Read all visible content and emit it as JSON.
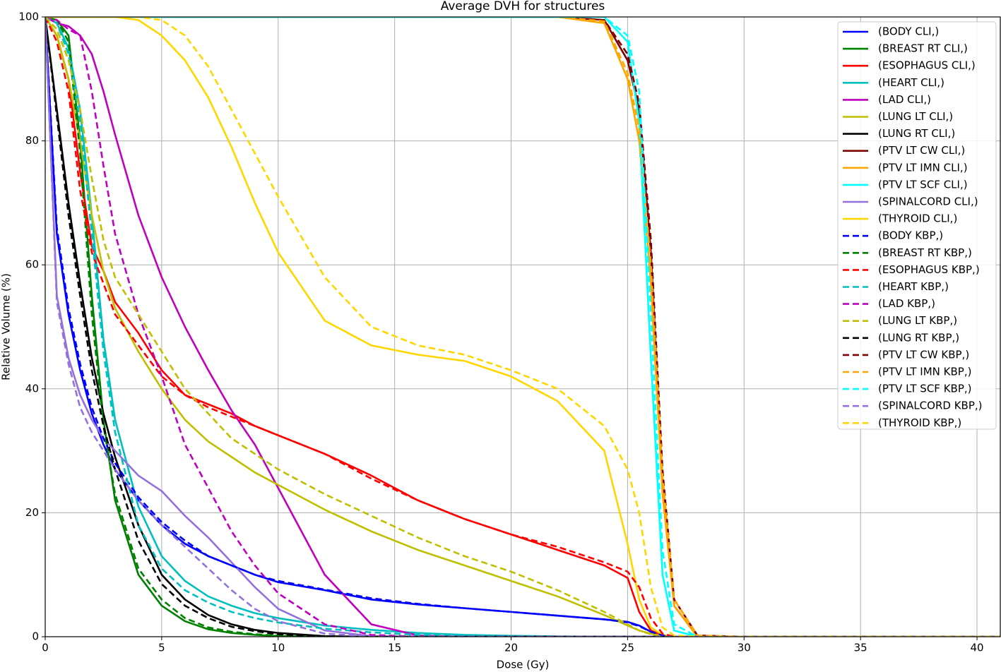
{
  "chart_data": {
    "type": "line",
    "title": "Average DVH for structures",
    "xlabel": "Dose (Gy)",
    "ylabel": "Relative Volume (%)",
    "xlim": [
      0,
      41
    ],
    "xticks": [
      0,
      5,
      10,
      15,
      20,
      25,
      30,
      35,
      40
    ],
    "ylim": [
      0,
      100
    ],
    "yticks": [
      0,
      20,
      40,
      60,
      80,
      100
    ],
    "grid": true,
    "legend": "upper right",
    "x": [
      0,
      0.5,
      1,
      1.5,
      2,
      2.5,
      3,
      4,
      5,
      6,
      7,
      8,
      9,
      10,
      12,
      14,
      16,
      18,
      20,
      22,
      24,
      25,
      25.5,
      26,
      26.5,
      27,
      28,
      30,
      41
    ],
    "series": [
      {
        "name": "(BODY CLI,)",
        "color": "#0000ff",
        "linestyle": "solid",
        "values": [
          100,
          65,
          52,
          43,
          36,
          31,
          27,
          22,
          18,
          15,
          13,
          11.5,
          10,
          8.8,
          7.5,
          6,
          5.2,
          4.6,
          4,
          3.4,
          2.8,
          2.4,
          1.8,
          0.8,
          0.2,
          0,
          0,
          0,
          0
        ]
      },
      {
        "name": "(BREAST RT CLI,)",
        "color": "#008000",
        "linestyle": "solid",
        "values": [
          100,
          99.5,
          97,
          80,
          55,
          35,
          22,
          10,
          5,
          2.5,
          1.2,
          0.6,
          0.3,
          0.1,
          0,
          0,
          0,
          0,
          0,
          0,
          0,
          0,
          0,
          0,
          0,
          0,
          0,
          0,
          0
        ]
      },
      {
        "name": "(ESOPHAGUS CLI,)",
        "color": "#ff0000",
        "linestyle": "solid",
        "values": [
          100,
          97,
          90,
          75,
          63,
          59,
          54,
          49,
          43,
          39,
          37.5,
          36,
          34,
          32.5,
          29.5,
          26,
          22,
          19,
          16.5,
          14,
          11.5,
          9.5,
          4,
          1,
          0.2,
          0,
          0,
          0,
          0
        ]
      },
      {
        "name": "(HEART CLI,)",
        "color": "#00bfbf",
        "linestyle": "solid",
        "values": [
          100,
          99,
          95,
          85,
          68,
          48,
          35,
          21,
          13,
          9,
          6.5,
          5,
          3.8,
          3,
          1.8,
          1.1,
          0.6,
          0.3,
          0.15,
          0.05,
          0,
          0,
          0,
          0,
          0,
          0,
          0,
          0,
          0
        ]
      },
      {
        "name": "(LAD CLI,)",
        "color": "#bf00bf",
        "linestyle": "solid",
        "values": [
          100,
          99,
          98.5,
          97,
          94,
          88,
          81,
          68,
          58,
          50,
          43,
          36.5,
          31,
          24,
          10,
          2,
          0.2,
          0,
          0,
          0,
          0,
          0,
          0,
          0,
          0,
          0,
          0,
          0,
          0
        ]
      },
      {
        "name": "(LUNG LT CLI,)",
        "color": "#bfbf00",
        "linestyle": "solid",
        "values": [
          100,
          97,
          90,
          80,
          68,
          59,
          53,
          46,
          40,
          35,
          31.5,
          29,
          26.5,
          24.5,
          20.5,
          17,
          14,
          11.5,
          9,
          6.5,
          3.5,
          1.8,
          1,
          0.5,
          0.1,
          0,
          0,
          0,
          0
        ]
      },
      {
        "name": "(LUNG RT CLI,)",
        "color": "#000000",
        "linestyle": "solid",
        "values": [
          100,
          85,
          70,
          57,
          45,
          36,
          29,
          18,
          10,
          6,
          3.5,
          2,
          1.1,
          0.6,
          0.1,
          0,
          0,
          0,
          0,
          0,
          0,
          0,
          0,
          0,
          0,
          0,
          0,
          0,
          0
        ]
      },
      {
        "name": "(PTV LT CW CLI,)",
        "color": "#800000",
        "linestyle": "solid",
        "values": [
          100,
          100,
          100,
          100,
          100,
          100,
          100,
          100,
          100,
          100,
          100,
          100,
          100,
          100,
          100,
          100,
          100,
          100,
          100,
          100,
          99.5,
          93,
          85,
          62,
          25,
          5,
          0,
          0,
          0
        ]
      },
      {
        "name": "(PTV LT IMN CLI,)",
        "color": "#ffa500",
        "linestyle": "solid",
        "values": [
          100,
          100,
          100,
          100,
          100,
          100,
          100,
          100,
          100,
          100,
          100,
          100,
          100,
          100,
          100,
          100,
          100,
          100,
          100,
          100,
          99,
          90,
          80,
          57,
          23,
          5,
          0,
          0,
          0
        ]
      },
      {
        "name": "(PTV LT SCF CLI,)",
        "color": "#00ffff",
        "linestyle": "solid",
        "values": [
          100,
          100,
          100,
          100,
          100,
          100,
          100,
          100,
          100,
          100,
          100,
          100,
          100,
          100,
          100,
          100,
          100,
          100,
          100,
          100,
          100,
          96,
          83,
          45,
          10,
          1,
          0,
          0,
          0
        ]
      },
      {
        "name": "(SPINALCORD CLI,)",
        "color": "#9370db",
        "linestyle": "solid",
        "values": [
          100,
          55,
          45,
          39,
          35,
          32,
          30,
          26,
          23.5,
          19.5,
          16,
          12,
          8,
          4.5,
          1,
          0.1,
          0,
          0,
          0,
          0,
          0,
          0,
          0,
          0,
          0,
          0,
          0,
          0,
          0
        ]
      },
      {
        "name": "(THYROID CLI,)",
        "color": "#ffd700",
        "linestyle": "solid",
        "values": [
          100,
          100,
          100,
          100,
          100,
          100,
          100,
          99.5,
          97,
          93,
          87,
          79,
          70,
          62,
          51,
          47,
          45.5,
          44.5,
          42,
          38,
          30,
          15,
          6,
          1.5,
          0.3,
          0,
          0,
          0,
          0
        ]
      },
      {
        "name": "(BODY KBP,)",
        "color": "#0000ff",
        "linestyle": "dashed",
        "values": [
          100,
          66,
          53,
          44,
          37,
          32,
          28,
          22.5,
          18.5,
          15.5,
          13,
          11.5,
          10,
          9,
          7.6,
          6.2,
          5.3,
          4.6,
          4,
          3.4,
          2.8,
          2.3,
          1.7,
          0.8,
          0.2,
          0,
          0,
          0,
          0
        ]
      },
      {
        "name": "(BREAST RT KBP,)",
        "color": "#008000",
        "linestyle": "dashed",
        "values": [
          100,
          99.5,
          96,
          78,
          52,
          34,
          23,
          11,
          6,
          3,
          1.5,
          0.8,
          0.4,
          0.2,
          0,
          0,
          0,
          0,
          0,
          0,
          0,
          0,
          0,
          0,
          0,
          0,
          0,
          0,
          0
        ]
      },
      {
        "name": "(ESOPHAGUS KBP,)",
        "color": "#ff0000",
        "linestyle": "dashed",
        "values": [
          100,
          96,
          88,
          72,
          62,
          57,
          52,
          47,
          42,
          39,
          37,
          35.5,
          34,
          32.5,
          29.5,
          25.5,
          22,
          19,
          16.5,
          14.5,
          12,
          10.5,
          8,
          3,
          0.5,
          0,
          0,
          0,
          0
        ]
      },
      {
        "name": "(HEART KBP,)",
        "color": "#00bfbf",
        "linestyle": "dashed",
        "values": [
          100,
          99,
          94,
          83,
          65,
          46,
          33,
          18,
          11,
          7.5,
          5.5,
          4,
          3,
          2.3,
          1.3,
          0.7,
          0.3,
          0.1,
          0,
          0,
          0,
          0,
          0,
          0,
          0,
          0,
          0,
          0,
          0
        ]
      },
      {
        "name": "(LAD KBP,)",
        "color": "#bf00bf",
        "linestyle": "dashed",
        "values": [
          100,
          99.5,
          98,
          97,
          88,
          76,
          65,
          52,
          42,
          31,
          24,
          17,
          11.5,
          7,
          2,
          0.3,
          0,
          0,
          0,
          0,
          0,
          0,
          0,
          0,
          0,
          0,
          0,
          0,
          0
        ]
      },
      {
        "name": "(LUNG LT KBP,)",
        "color": "#bfbf00",
        "linestyle": "dashed",
        "values": [
          100,
          98,
          93,
          85,
          74,
          64,
          58,
          52,
          46,
          40,
          36,
          32,
          29.5,
          27,
          23,
          19.5,
          16,
          13,
          10.5,
          7.5,
          4,
          2,
          1,
          0.4,
          0,
          0,
          0,
          0,
          0
        ]
      },
      {
        "name": "(LUNG RT KBP,)",
        "color": "#000000",
        "linestyle": "dashed",
        "values": [
          100,
          84,
          68,
          55,
          43,
          34,
          27,
          15.5,
          8.5,
          5,
          3,
          1.6,
          0.9,
          0.4,
          0,
          0,
          0,
          0,
          0,
          0,
          0,
          0,
          0,
          0,
          0,
          0,
          0,
          0,
          0
        ]
      },
      {
        "name": "(PTV LT CW KBP,)",
        "color": "#800000",
        "linestyle": "dashed",
        "values": [
          100,
          100,
          100,
          100,
          100,
          100,
          100,
          100,
          100,
          100,
          100,
          100,
          100,
          100,
          100,
          100,
          100,
          100,
          100,
          100,
          99.5,
          94,
          86,
          64,
          27,
          6,
          0.2,
          0,
          0
        ]
      },
      {
        "name": "(PTV LT IMN KBP,)",
        "color": "#ffa500",
        "linestyle": "dashed",
        "values": [
          100,
          100,
          100,
          100,
          100,
          100,
          100,
          100,
          100,
          100,
          100,
          100,
          100,
          100,
          100,
          100,
          100,
          100,
          100,
          100,
          99.3,
          91,
          82,
          60,
          26,
          6,
          0.2,
          0,
          0
        ]
      },
      {
        "name": "(PTV LT SCF KBP,)",
        "color": "#00ffff",
        "linestyle": "dashed",
        "values": [
          100,
          100,
          100,
          100,
          100,
          100,
          100,
          100,
          100,
          100,
          100,
          100,
          100,
          100,
          100,
          100,
          100,
          100,
          100,
          100,
          100,
          97,
          88,
          52,
          14,
          2,
          0,
          0,
          0
        ]
      },
      {
        "name": "(SPINALCORD KBP,)",
        "color": "#9370db",
        "linestyle": "dashed",
        "values": [
          100,
          54,
          44,
          37,
          33,
          30,
          27,
          22,
          18,
          14.5,
          11,
          7.5,
          4.5,
          2.5,
          0.5,
          0,
          0,
          0,
          0,
          0,
          0,
          0,
          0,
          0,
          0,
          0,
          0,
          0,
          0
        ]
      },
      {
        "name": "(THYROID KBP,)",
        "color": "#ffd700",
        "linestyle": "dashed",
        "values": [
          100,
          100,
          100,
          100,
          100,
          100,
          100,
          100,
          99.5,
          97,
          92,
          85,
          78,
          71,
          58,
          50,
          47,
          45.5,
          43,
          40,
          34,
          27,
          20,
          8,
          1.5,
          0.2,
          0,
          0,
          0
        ]
      }
    ]
  }
}
